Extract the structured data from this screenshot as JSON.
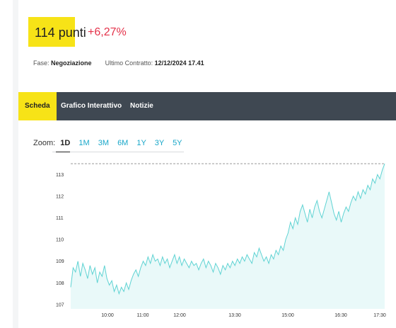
{
  "quote": {
    "price": "114 punti",
    "change": "+6,27%"
  },
  "info": {
    "phase_label": "Fase:",
    "phase_value": "Negoziazione",
    "last_contract_label": "Ultimo Contratto:",
    "last_contract_value": "12/12/2024 17.41"
  },
  "tabs": [
    {
      "label": "Scheda",
      "active": true
    },
    {
      "label": "Grafico Interattivo",
      "active": false
    },
    {
      "label": "Notizie",
      "active": false
    }
  ],
  "zoom": {
    "label": "Zoom:",
    "options": [
      "1D",
      "1M",
      "3M",
      "6M",
      "1Y",
      "3Y",
      "5Y"
    ],
    "selected": "1D"
  },
  "colors": {
    "accent_yellow": "#f7e317",
    "tabbar": "#3f4852",
    "negative_red": "#e4324a",
    "zoom_cyan": "#19a7c9",
    "line": "#5fd3d3",
    "area": "#e9f9f9"
  },
  "chart_data": {
    "type": "area",
    "y_tick_labels": [
      "107",
      "108",
      "109",
      "110",
      "111",
      "112",
      "113"
    ],
    "x_tick_labels": [
      "10:00",
      "11:00",
      "12:00",
      "13:30",
      "15:00",
      "16:30",
      "17:30"
    ],
    "ylim": [
      106.8,
      113.6
    ],
    "reference_line": 113.5,
    "grid": false,
    "series": [
      {
        "values": [
          107.8,
          108.7,
          108.5,
          109.0,
          108.3,
          108.9,
          108.6,
          108.2,
          108.8,
          108.4,
          108.7,
          108.0,
          108.5,
          108.3,
          108.8,
          108.2,
          107.9,
          108.1,
          107.6,
          107.9,
          107.5,
          107.8,
          107.6,
          108.0,
          107.7,
          108.1,
          108.4,
          108.6,
          108.3,
          108.7,
          109.0,
          108.8,
          109.2,
          108.9,
          109.3,
          109.0,
          109.1,
          108.8,
          109.2,
          108.9,
          109.1,
          108.7,
          109.0,
          109.3,
          108.9,
          109.2,
          108.8,
          109.1,
          108.9,
          108.7,
          109.0,
          108.8,
          108.9,
          108.6,
          108.9,
          109.1,
          108.7,
          109.0,
          108.8,
          108.5,
          108.9,
          108.7,
          108.4,
          108.8,
          108.6,
          108.9,
          108.7,
          109.0,
          108.8,
          109.1,
          108.9,
          109.2,
          109.0,
          109.3,
          109.1,
          108.9,
          109.4,
          109.2,
          109.6,
          109.3,
          109.0,
          109.2,
          108.9,
          109.3,
          109.1,
          109.5,
          109.3,
          109.7,
          109.5,
          110.0,
          110.3,
          110.8,
          110.5,
          111.0,
          110.7,
          111.3,
          111.6,
          111.2,
          110.8,
          111.4,
          111.0,
          111.5,
          111.8,
          111.3,
          111.0,
          111.4,
          111.8,
          112.2,
          111.7,
          111.2,
          110.9,
          111.3,
          110.8,
          111.2,
          111.5,
          111.3,
          111.7,
          112.0,
          111.8,
          112.2,
          111.9,
          112.3,
          112.1,
          112.5,
          112.3,
          112.8,
          112.6,
          113.0,
          112.8,
          113.2,
          113.5
        ]
      }
    ]
  }
}
